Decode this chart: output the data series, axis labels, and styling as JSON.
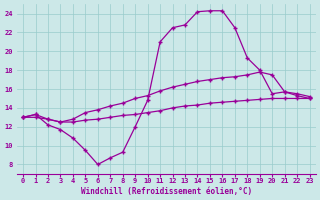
{
  "xlabel": "Windchill (Refroidissement éolien,°C)",
  "bg_color": "#cce8e8",
  "grid_color": "#99cccc",
  "line_color": "#990099",
  "x_ticks": [
    0,
    1,
    2,
    3,
    4,
    5,
    6,
    7,
    8,
    9,
    10,
    11,
    12,
    13,
    14,
    15,
    16,
    17,
    18,
    19,
    20,
    21,
    22,
    23
  ],
  "y_ticks": [
    8,
    10,
    12,
    14,
    16,
    18,
    20,
    22,
    24
  ],
  "ylim": [
    7.0,
    25.0
  ],
  "xlim": [
    -0.5,
    23.5
  ],
  "series": [
    [
      13.0,
      13.3,
      12.2,
      11.7,
      10.8,
      9.5,
      8.0,
      8.7,
      9.3,
      12.0,
      14.8,
      21.0,
      22.5,
      22.8,
      24.2,
      24.3,
      24.3,
      22.5,
      19.3,
      18.0,
      15.5,
      15.7,
      15.3,
      15.0
    ],
    [
      13.0,
      13.3,
      12.8,
      12.5,
      12.8,
      13.5,
      13.8,
      14.2,
      14.5,
      15.0,
      15.3,
      15.8,
      16.2,
      16.5,
      16.8,
      17.0,
      17.2,
      17.3,
      17.5,
      17.8,
      17.5,
      15.7,
      15.5,
      15.2
    ],
    [
      13.0,
      13.0,
      12.8,
      12.5,
      12.5,
      12.7,
      12.8,
      13.0,
      13.2,
      13.3,
      13.5,
      13.7,
      14.0,
      14.2,
      14.3,
      14.5,
      14.6,
      14.7,
      14.8,
      14.9,
      15.0,
      15.0,
      15.0,
      15.0
    ]
  ]
}
